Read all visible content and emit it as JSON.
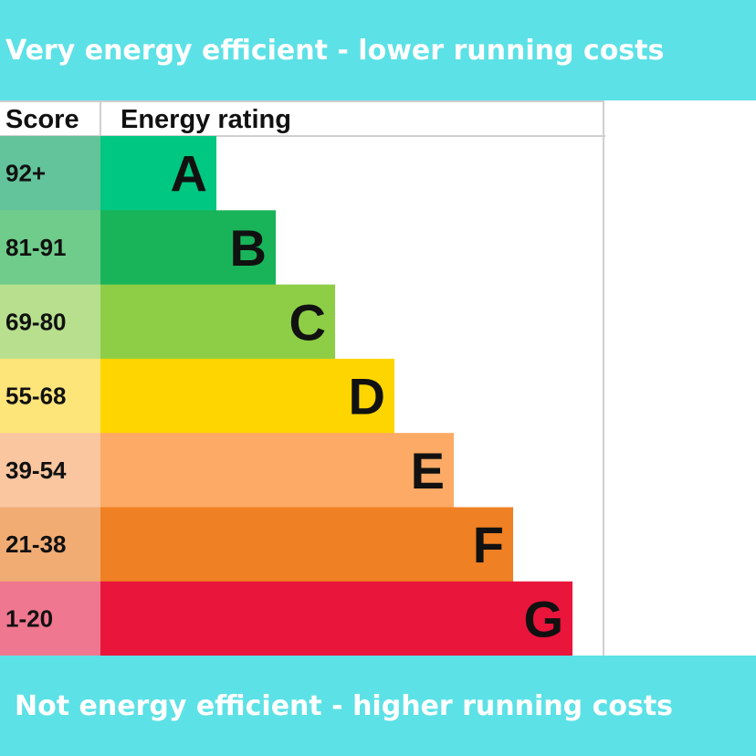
{
  "colors": {
    "banner": "#5ce1e6",
    "grid": "#cfcfcf",
    "text": "#111111"
  },
  "banners": {
    "top": "Very energy efficient - lower running costs",
    "bottom": "Not energy efficient - higher running costs"
  },
  "chart_data": {
    "type": "bar",
    "orientation": "horizontal",
    "title": "",
    "column_headers": {
      "score": "Score",
      "rating": "Energy rating"
    },
    "bands": [
      {
        "rating": "A",
        "score": "92+",
        "bar_color": "#00c781",
        "score_color": "#63c39b"
      },
      {
        "rating": "B",
        "score": "81-91",
        "bar_color": "#19b459",
        "score_color": "#6fcc8a"
      },
      {
        "rating": "C",
        "score": "69-80",
        "bar_color": "#8dce46",
        "score_color": "#b7df8e"
      },
      {
        "rating": "D",
        "score": "55-68",
        "bar_color": "#ffd500",
        "score_color": "#fde57a"
      },
      {
        "rating": "E",
        "score": "39-54",
        "bar_color": "#fcaa65",
        "score_color": "#f9c6a0"
      },
      {
        "rating": "F",
        "score": "21-38",
        "bar_color": "#ef8023",
        "score_color": "#f1ac74"
      },
      {
        "rating": "G",
        "score": "1-20",
        "bar_color": "#e9153b",
        "score_color": "#ef7790"
      }
    ],
    "legend": "none",
    "grid": false
  }
}
